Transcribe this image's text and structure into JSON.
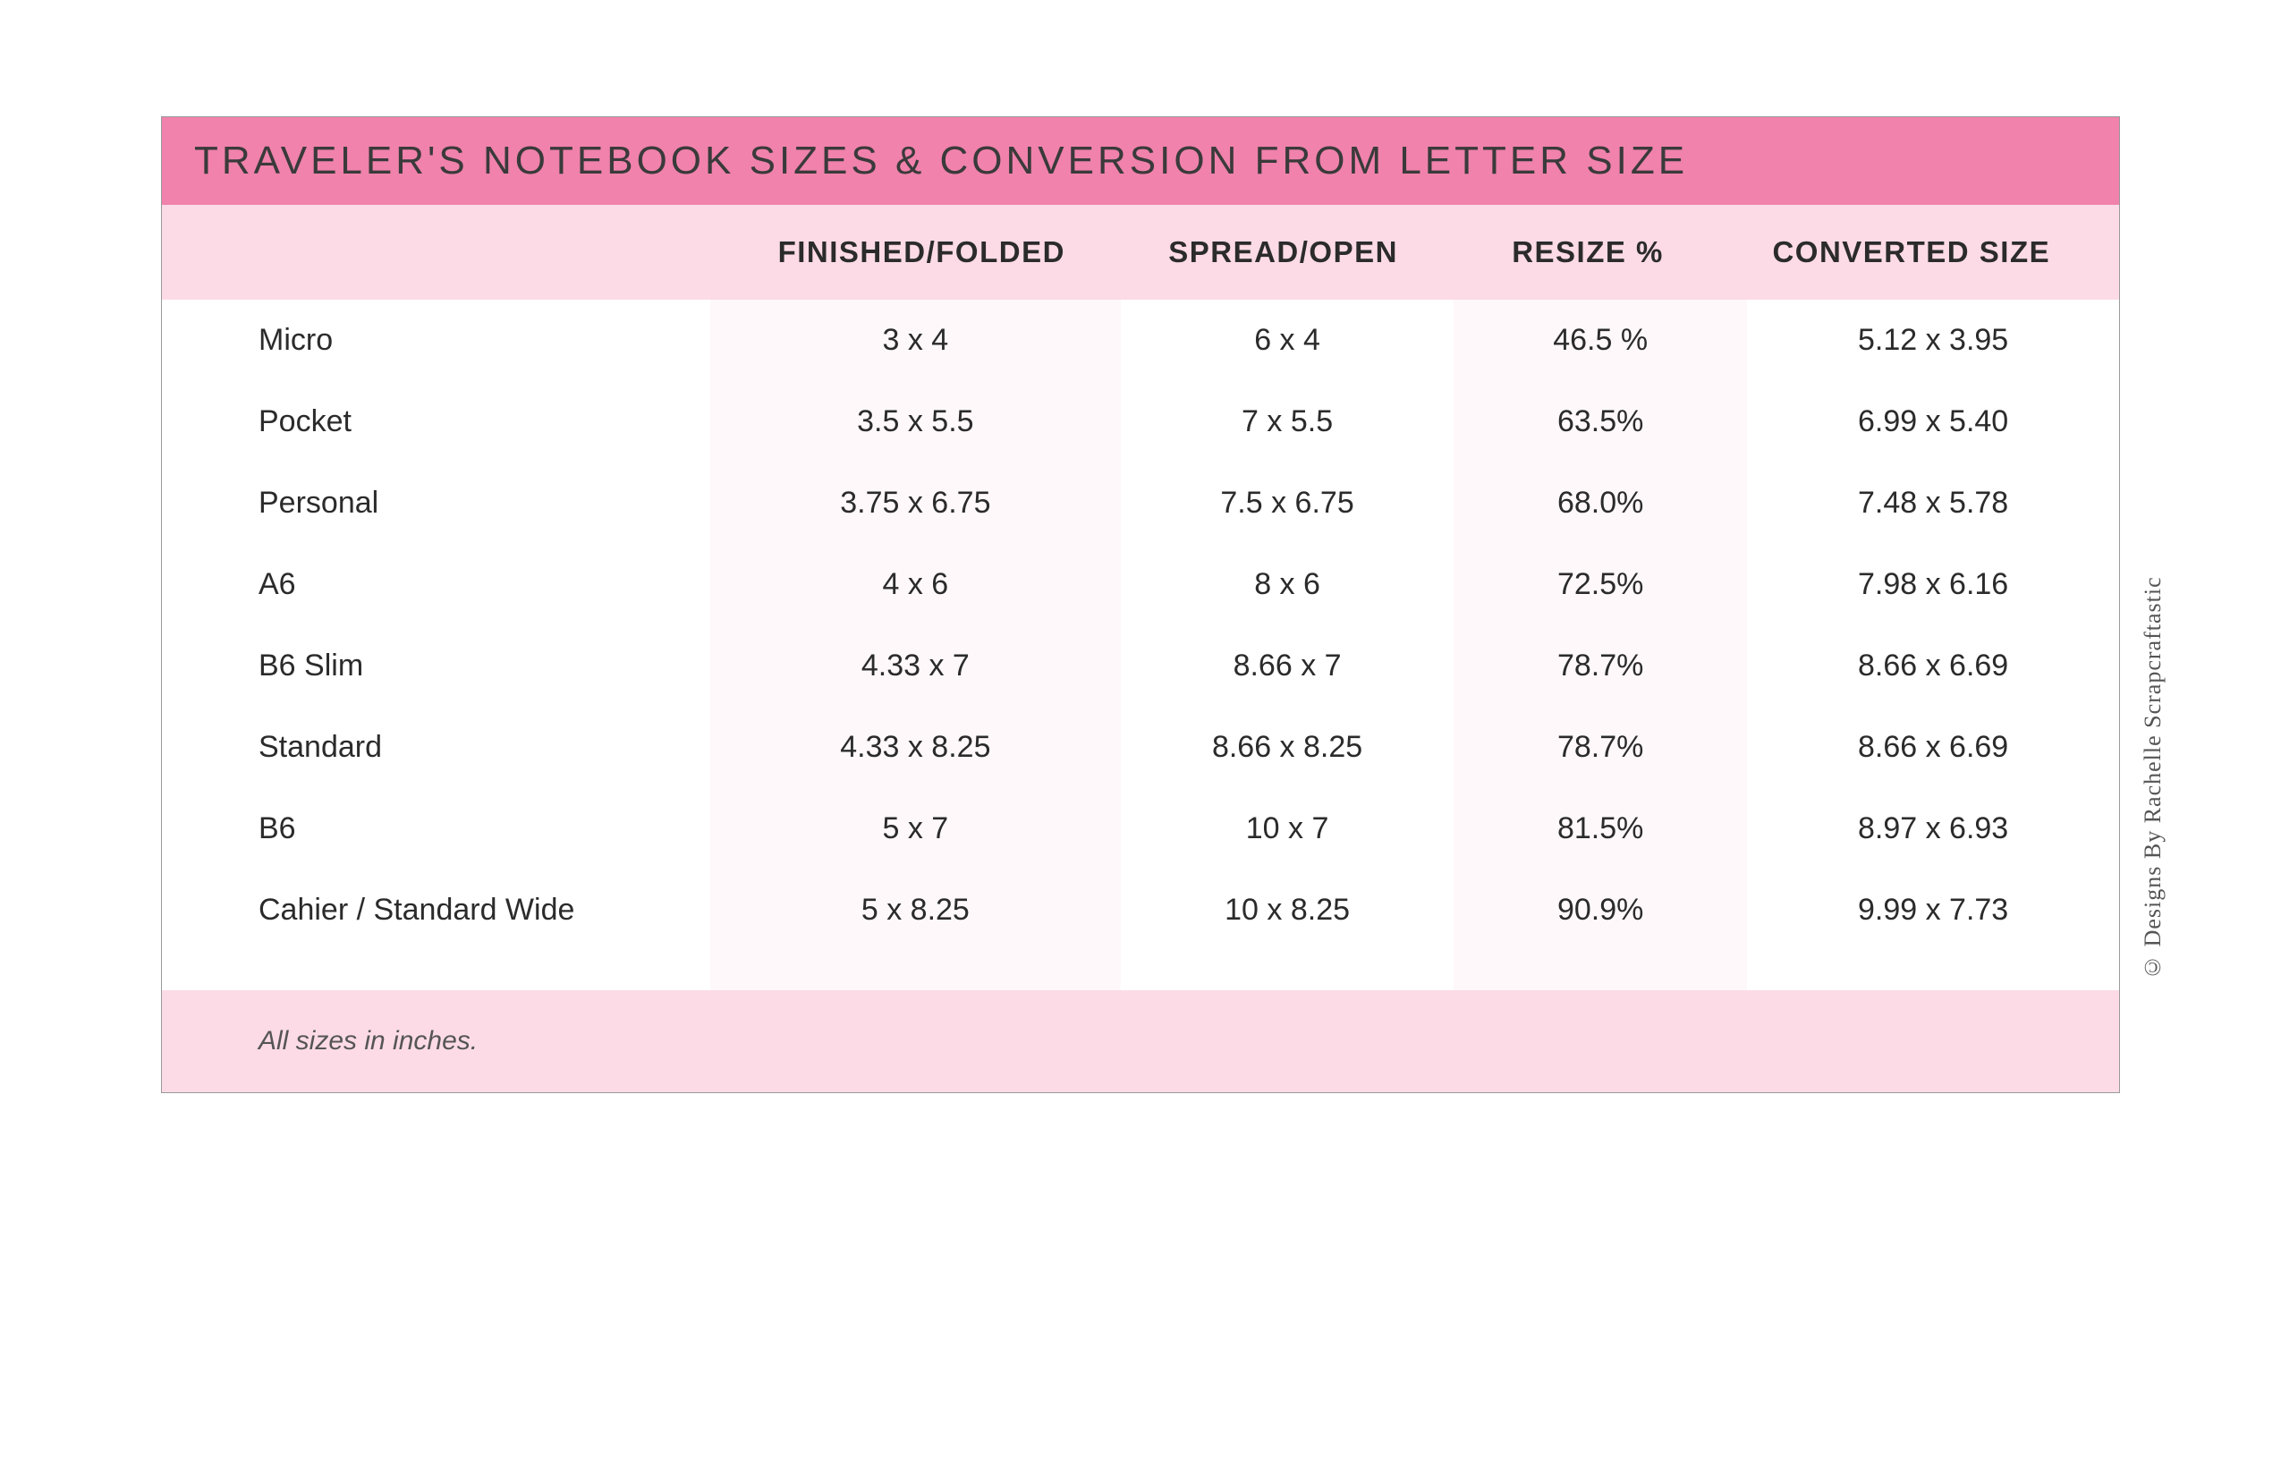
{
  "title": "TRAVELER'S NOTEBOOK SIZES & CONVERSION FROM LETTER SIZE",
  "columns": [
    "",
    "FINISHED/FOLDED",
    "SPREAD/OPEN",
    "RESIZE %",
    "CONVERTED SIZE"
  ],
  "rows": [
    {
      "name": "Micro",
      "finished": "3 x 4",
      "spread": "6 x 4",
      "resize": "46.5 %",
      "converted": "5.12 x 3.95"
    },
    {
      "name": "Pocket",
      "finished": "3.5 x 5.5",
      "spread": "7 x 5.5",
      "resize": "63.5%",
      "converted": "6.99 x 5.40"
    },
    {
      "name": "Personal",
      "finished": "3.75 x 6.75",
      "spread": "7.5 x 6.75",
      "resize": "68.0%",
      "converted": "7.48 x 5.78"
    },
    {
      "name": "A6",
      "finished": "4 x 6",
      "spread": "8 x 6",
      "resize": "72.5%",
      "converted": "7.98 x 6.16"
    },
    {
      "name": "B6 Slim",
      "finished": "4.33 x 7",
      "spread": "8.66 x 7",
      "resize": "78.7%",
      "converted": "8.66 x 6.69"
    },
    {
      "name": "Standard",
      "finished": "4.33 x 8.25",
      "spread": "8.66 x 8.25",
      "resize": "78.7%",
      "converted": "8.66 x 6.69"
    },
    {
      "name": "B6",
      "finished": "5 x 7",
      "spread": "10 x 7",
      "resize": "81.5%",
      "converted": "8.97 x 6.93"
    },
    {
      "name": "Cahier / Standard Wide",
      "finished": "5 x 8.25",
      "spread": "10 x 8.25",
      "resize": "90.9%",
      "converted": "9.99 x 7.73"
    }
  ],
  "footer": "All sizes in inches.",
  "credit": "© Designs By Rachelle Scrapcraftastic",
  "style": {
    "title_bg": "#f082ac",
    "header_bg": "#fcdbe6",
    "footer_bg": "#fcdbe6",
    "col_odd_bg": "#ffffff",
    "col_even_bg": "#fef8fa",
    "border_color": "#999999",
    "title_color": "#3a3a3a",
    "text_color": "#2b2b2b",
    "footer_text_color": "#555555",
    "credit_color": "#555555",
    "title_fontsize": 44,
    "header_fontsize": 33,
    "body_fontsize": 34,
    "footer_fontsize": 30,
    "credit_fontsize": 26,
    "column_widths_pct": [
      28,
      21,
      17,
      15,
      19
    ]
  }
}
